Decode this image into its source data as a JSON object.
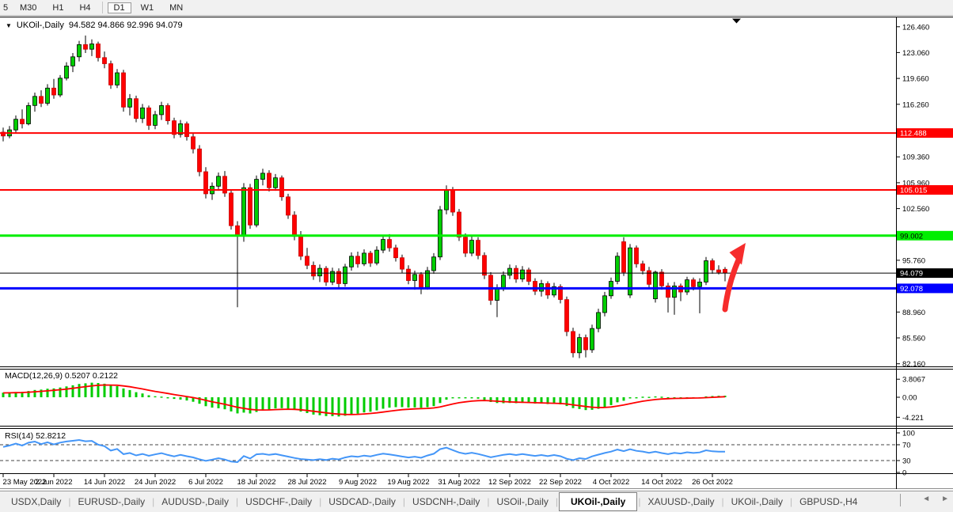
{
  "toolbar": {
    "partial_label": "5",
    "timeframes": [
      "M30",
      "H1",
      "H4",
      "D1",
      "W1",
      "MN"
    ],
    "active_timeframe": "D1"
  },
  "chart": {
    "collapse_glyph": "▼",
    "title_symbol": "UKOil-,Daily",
    "title_values": "94.582 94.866 92.996 94.079",
    "candle_up_color": "#00CE00",
    "candle_down_color": "#FF0000",
    "wick_color": "#000000",
    "arrow_color": "#F62C2C",
    "price_ticks": [
      "126.460",
      "123.060",
      "119.660",
      "116.260",
      "109.360",
      "105.960",
      "102.560",
      "95.760",
      "88.960",
      "85.560",
      "82.160"
    ],
    "hlines": [
      {
        "price": 112.488,
        "label": "112.488",
        "color": "#FF0000",
        "text_color": "#FFFFFF",
        "thickness": 2
      },
      {
        "price": 105.015,
        "label": "105.015",
        "color": "#FF0000",
        "text_color": "#FFFFFF",
        "thickness": 2
      },
      {
        "price": 99.002,
        "label": "99.002",
        "color": "#00EE00",
        "text_color": "#000000",
        "thickness": 3
      },
      {
        "price": 94.079,
        "label": "94.079",
        "color": "#000000",
        "text_color": "#FFFFFF",
        "thickness": 1
      },
      {
        "price": 92.078,
        "label": "92.078",
        "color": "#0000FF",
        "text_color": "#FFFFFF",
        "thickness": 3
      }
    ]
  },
  "chart_data": {
    "type": "candlestick",
    "symbol": "UKOil-",
    "timeframe": "Daily",
    "last_bar": {
      "open": 94.582,
      "high": 94.866,
      "low": 92.996,
      "close": 94.079
    },
    "ohlc": [
      [
        112.6,
        113.2,
        111.4,
        112.1
      ],
      [
        112.1,
        113.4,
        111.8,
        112.9
      ],
      [
        112.9,
        114.8,
        112.5,
        114.3
      ],
      [
        114.3,
        115.6,
        113.1,
        113.7
      ],
      [
        113.7,
        116.5,
        113.5,
        116.1
      ],
      [
        116.1,
        117.8,
        115.3,
        117.3
      ],
      [
        117.3,
        118.1,
        115.9,
        116.4
      ],
      [
        116.4,
        118.9,
        116.1,
        118.4
      ],
      [
        118.4,
        119.6,
        117.0,
        117.5
      ],
      [
        117.5,
        120.1,
        117.2,
        119.7
      ],
      [
        119.7,
        121.8,
        119.4,
        121.3
      ],
      [
        121.3,
        123.0,
        120.5,
        122.5
      ],
      [
        122.5,
        124.6,
        121.9,
        124.1
      ],
      [
        124.1,
        125.3,
        123.0,
        123.5
      ],
      [
        123.5,
        124.8,
        122.6,
        124.2
      ],
      [
        124.2,
        124.5,
        121.9,
        122.4
      ],
      [
        122.4,
        123.2,
        121.0,
        121.6
      ],
      [
        121.6,
        122.0,
        118.3,
        118.8
      ],
      [
        118.8,
        120.9,
        118.4,
        120.4
      ],
      [
        120.4,
        120.8,
        115.3,
        115.9
      ],
      [
        115.9,
        117.6,
        114.8,
        117.0
      ],
      [
        117.0,
        117.4,
        113.9,
        114.4
      ],
      [
        114.4,
        116.3,
        113.8,
        115.8
      ],
      [
        115.8,
        116.1,
        112.9,
        113.5
      ],
      [
        113.5,
        115.4,
        113.0,
        114.9
      ],
      [
        114.9,
        116.6,
        114.2,
        116.1
      ],
      [
        116.1,
        116.4,
        113.6,
        114.1
      ],
      [
        114.1,
        114.5,
        111.8,
        112.3
      ],
      [
        112.3,
        114.2,
        111.9,
        113.7
      ],
      [
        113.7,
        114.0,
        111.5,
        112.0
      ],
      [
        112.0,
        112.4,
        109.8,
        110.4
      ],
      [
        110.4,
        110.9,
        106.8,
        107.4
      ],
      [
        107.4,
        108.0,
        103.9,
        104.5
      ],
      [
        104.5,
        106.0,
        103.7,
        105.5
      ],
      [
        105.5,
        107.3,
        104.9,
        106.8
      ],
      [
        106.8,
        107.5,
        104.1,
        104.6
      ],
      [
        104.6,
        105.0,
        99.8,
        100.3
      ],
      [
        100.3,
        100.9,
        89.6,
        99.0
      ],
      [
        99.0,
        105.9,
        98.2,
        105.3
      ],
      [
        105.3,
        105.8,
        99.9,
        100.4
      ],
      [
        100.4,
        106.9,
        100.1,
        106.4
      ],
      [
        106.4,
        107.8,
        105.6,
        107.2
      ],
      [
        107.2,
        107.6,
        104.8,
        105.3
      ],
      [
        105.3,
        107.1,
        104.9,
        106.6
      ],
      [
        106.6,
        106.9,
        103.6,
        104.1
      ],
      [
        104.1,
        104.5,
        101.2,
        101.7
      ],
      [
        101.7,
        102.2,
        98.4,
        98.9
      ],
      [
        98.9,
        99.6,
        95.8,
        96.3
      ],
      [
        96.3,
        97.4,
        94.6,
        95.1
      ],
      [
        95.1,
        95.6,
        93.2,
        93.7
      ],
      [
        93.7,
        95.2,
        92.9,
        94.7
      ],
      [
        94.7,
        95.0,
        92.4,
        92.9
      ],
      [
        92.9,
        94.8,
        92.5,
        94.3
      ],
      [
        94.3,
        94.7,
        92.2,
        92.7
      ],
      [
        92.7,
        95.3,
        92.3,
        94.9
      ],
      [
        94.9,
        96.8,
        94.4,
        96.3
      ],
      [
        96.3,
        96.9,
        94.8,
        95.3
      ],
      [
        95.3,
        97.2,
        95.0,
        96.7
      ],
      [
        96.7,
        97.0,
        94.9,
        95.4
      ],
      [
        95.4,
        97.6,
        95.1,
        97.1
      ],
      [
        97.1,
        99.0,
        96.7,
        98.5
      ],
      [
        98.5,
        99.2,
        96.9,
        97.4
      ],
      [
        97.4,
        97.8,
        95.6,
        96.1
      ],
      [
        96.1,
        96.5,
        94.1,
        94.6
      ],
      [
        94.6,
        95.1,
        92.6,
        93.1
      ],
      [
        93.1,
        94.4,
        91.9,
        93.9
      ],
      [
        93.9,
        94.2,
        91.3,
        92.2
      ],
      [
        92.2,
        94.9,
        91.9,
        94.4
      ],
      [
        94.4,
        96.7,
        94.0,
        96.2
      ],
      [
        96.2,
        102.9,
        95.8,
        102.4
      ],
      [
        102.4,
        105.6,
        101.8,
        105.0
      ],
      [
        105.0,
        105.4,
        101.6,
        102.1
      ],
      [
        102.1,
        102.5,
        98.3,
        98.8
      ],
      [
        98.8,
        99.3,
        96.2,
        96.7
      ],
      [
        96.7,
        98.9,
        96.3,
        98.4
      ],
      [
        98.4,
        98.8,
        95.9,
        96.4
      ],
      [
        96.4,
        96.8,
        93.3,
        93.8
      ],
      [
        93.8,
        94.2,
        89.9,
        90.5
      ],
      [
        90.5,
        92.6,
        88.3,
        92.1
      ],
      [
        92.1,
        94.3,
        91.7,
        93.8
      ],
      [
        93.8,
        95.2,
        93.3,
        94.7
      ],
      [
        94.7,
        95.1,
        92.8,
        93.3
      ],
      [
        93.3,
        95.0,
        92.9,
        94.5
      ],
      [
        94.5,
        94.8,
        92.5,
        93.0
      ],
      [
        93.0,
        93.4,
        91.2,
        91.7
      ],
      [
        91.7,
        93.2,
        91.0,
        92.7
      ],
      [
        92.7,
        93.0,
        90.7,
        91.2
      ],
      [
        91.2,
        92.8,
        90.9,
        92.3
      ],
      [
        92.3,
        92.6,
        90.1,
        90.6
      ],
      [
        90.6,
        91.0,
        85.8,
        86.4
      ],
      [
        86.4,
        86.9,
        83.0,
        83.6
      ],
      [
        83.6,
        86.1,
        82.9,
        85.6
      ],
      [
        85.6,
        86.0,
        83.0,
        84.0
      ],
      [
        84.0,
        87.3,
        83.6,
        86.8
      ],
      [
        86.8,
        89.4,
        86.3,
        88.9
      ],
      [
        88.9,
        91.6,
        88.4,
        91.1
      ],
      [
        91.1,
        93.5,
        90.7,
        93.0
      ],
      [
        93.0,
        96.8,
        92.6,
        96.3
      ],
      [
        98.2,
        98.8,
        93.7,
        94.2
      ],
      [
        91.2,
        97.9,
        90.8,
        97.4
      ],
      [
        97.4,
        97.7,
        94.8,
        95.3
      ],
      [
        95.3,
        95.7,
        93.9,
        94.4
      ],
      [
        94.4,
        94.9,
        92.1,
        92.6
      ],
      [
        90.7,
        94.4,
        90.2,
        94.2
      ],
      [
        94.2,
        94.6,
        91.9,
        92.4
      ],
      [
        92.4,
        92.8,
        88.9,
        90.9
      ],
      [
        90.9,
        92.9,
        88.6,
        92.4
      ],
      [
        92.4,
        92.7,
        90.4,
        91.6
      ],
      [
        91.6,
        93.6,
        91.2,
        93.2
      ],
      [
        93.2,
        93.5,
        91.8,
        92.3
      ],
      [
        92.3,
        93.4,
        88.8,
        92.9
      ],
      [
        92.9,
        96.2,
        92.5,
        95.7
      ],
      [
        95.7,
        96.0,
        94.0,
        94.5
      ],
      [
        94.5,
        95.1,
        93.9,
        94.2
      ],
      [
        94.582,
        94.866,
        92.996,
        94.079
      ]
    ],
    "date_ticks": [
      {
        "bar": 0,
        "label": "23 May 2022"
      },
      {
        "bar": 8,
        "label": "2 Jun 2022"
      },
      {
        "bar": 16,
        "label": "14 Jun 2022"
      },
      {
        "bar": 24,
        "label": "24 Jun 2022"
      },
      {
        "bar": 32,
        "label": "6 Jul 2022"
      },
      {
        "bar": 40,
        "label": "18 Jul 2022"
      },
      {
        "bar": 48,
        "label": "28 Jul 2022"
      },
      {
        "bar": 56,
        "label": "9 Aug 2022"
      },
      {
        "bar": 64,
        "label": "19 Aug 2022"
      },
      {
        "bar": 72,
        "label": "31 Aug 2022"
      },
      {
        "bar": 80,
        "label": "12 Sep 2022"
      },
      {
        "bar": 88,
        "label": "22 Sep 2022"
      },
      {
        "bar": 96,
        "label": "4 Oct 2022"
      },
      {
        "bar": 104,
        "label": "14 Oct 2022"
      },
      {
        "bar": 112,
        "label": "26 Oct 2022"
      }
    ]
  },
  "macd": {
    "label": "MACD(12,26,9) 0.5207 0.2122",
    "params": "12,26,9",
    "value_main": "0.5207",
    "value_signal": "0.2122",
    "axis_labels": [
      "3.8067",
      "0.00",
      "-4.221"
    ],
    "histogram_color": "#00CC00",
    "signal_color": "#FF0000"
  },
  "rsi": {
    "label": "RSI(14) 52.8212",
    "period": "14",
    "value": "52.8212",
    "axis_labels": [
      "100",
      "70",
      "30",
      "0"
    ],
    "levels": [
      70,
      30
    ],
    "line_color": "#4496F8"
  },
  "bottombar": {
    "tabs": [
      "USDX,Daily",
      "EURUSD-,Daily",
      "AUDUSD-,Daily",
      "USDCHF-,Daily",
      "USDCAD-,Daily",
      "USDCNH-,Daily",
      "USOil-,Daily",
      "UKOil-,Daily",
      "XAUUSD-,Daily",
      "UKOil-,Daily",
      "GBPUSD-,H4"
    ],
    "active_index": 7,
    "separator": "|",
    "scroll_left": "◄",
    "scroll_right": "►"
  }
}
